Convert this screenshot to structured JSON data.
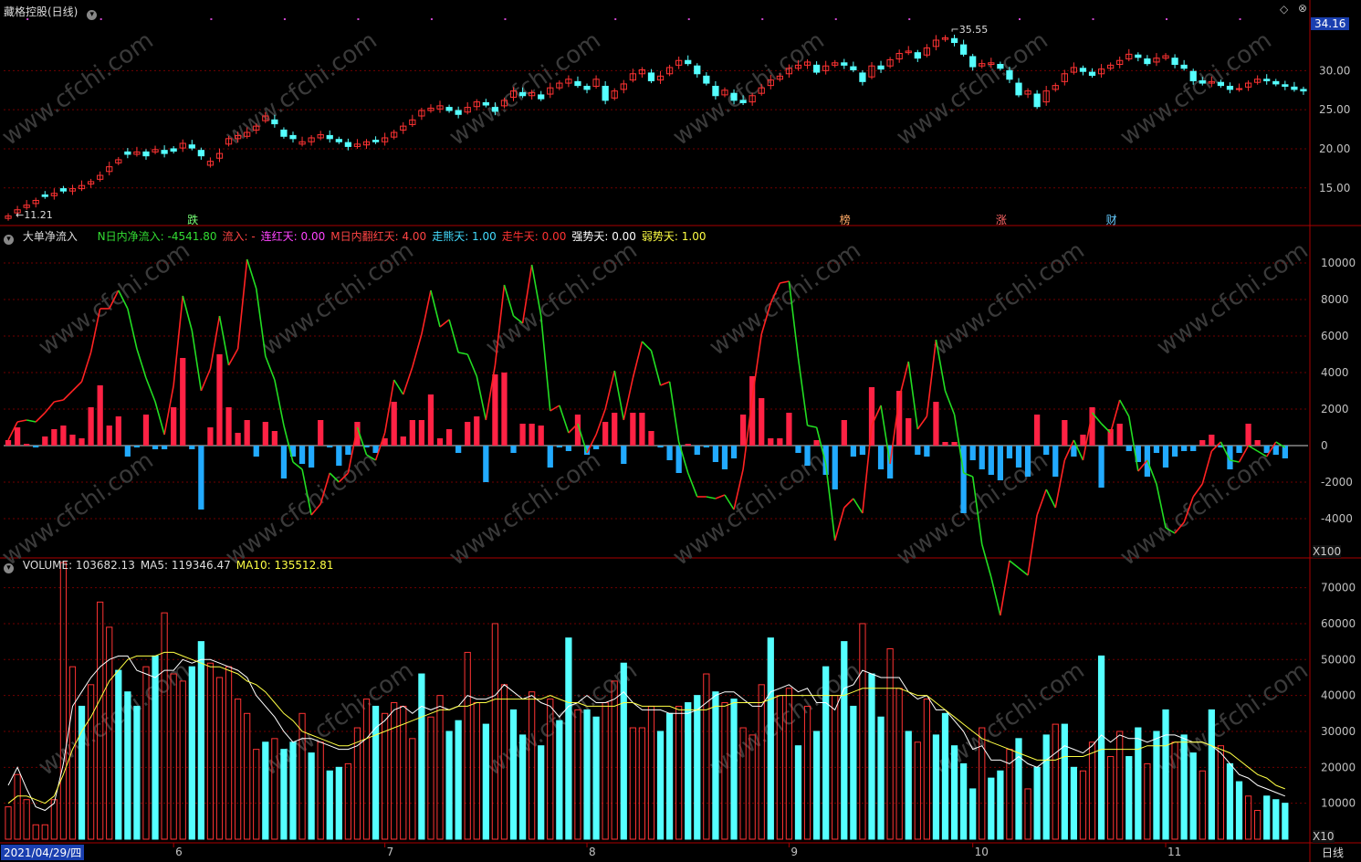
{
  "header": {
    "title": "藏格控股(日线)",
    "indicator_name": "大单净流入",
    "indicator_items": [
      {
        "label": "N日内净流入:",
        "value": "-4541.80",
        "color": "#33dd33"
      },
      {
        "label": "流入:",
        "value": "-",
        "color": "#ff4444"
      },
      {
        "label": "连红天:",
        "value": "0.00",
        "color": "#ff44ff"
      },
      {
        "label": "M日内翻红天:",
        "value": "4.00",
        "color": "#ff4444"
      },
      {
        "label": "走熊天:",
        "value": "1.00",
        "color": "#44ddff"
      },
      {
        "label": "走牛天:",
        "value": "0.00",
        "color": "#ff3333"
      },
      {
        "label": "强势天:",
        "value": "0.00",
        "color": "#ffffff"
      },
      {
        "label": "弱势天:",
        "value": "1.00",
        "color": "#ffff44"
      }
    ],
    "volume_items": [
      {
        "label": "VOLUME:",
        "value": "103682.13",
        "color": "#dddddd"
      },
      {
        "label": "MA5:",
        "value": "119346.47",
        "color": "#dddddd"
      },
      {
        "label": "MA10:",
        "value": "135512.81",
        "color": "#ffff44"
      }
    ],
    "price_tag": "34.16",
    "multiplier_indicator": "X100",
    "multiplier_volume": "X10",
    "period": "日线",
    "date_box": "2021/04/29/四",
    "watermark": "www.cfchi.com"
  },
  "colors": {
    "up": "#ff3333",
    "down": "#55ffff",
    "flow_pos": "#ff2244",
    "flow_neg": "#22aaff",
    "line_up": "#ff2222",
    "line_down": "#22dd22",
    "grid": "#700000",
    "frame": "#aa0000",
    "axis_text": "#c0c0c0"
  },
  "chart_data": [
    {
      "type": "candlestick",
      "name": "price",
      "ylim": [
        11,
        36
      ],
      "y_ticks": [
        "15.00",
        "20.00",
        "25.00",
        "30.00"
      ],
      "high_label": "35.55",
      "low_label": "11.21",
      "markers": [
        "跌",
        "榜",
        "涨",
        "财"
      ],
      "close": [
        11.4,
        12.2,
        12.8,
        13.4,
        13.9,
        14.3,
        14.6,
        14.9,
        15.3,
        15.8,
        16.6,
        17.7,
        18.6,
        19.3,
        19.6,
        19.1,
        19.9,
        19.4,
        19.7,
        20.7,
        20.1,
        19.1,
        18.4,
        19.4,
        21.3,
        21.7,
        22.1,
        22.9,
        24.2,
        23.2,
        21.6,
        21.3,
        20.9,
        21.4,
        21.8,
        21.3,
        20.9,
        20.3,
        20.6,
        20.9,
        20.9,
        21.4,
        22.1,
        22.9,
        23.7,
        24.9,
        25.2,
        25.5,
        24.9,
        24.4,
        25.3,
        26.0,
        25.6,
        24.8,
        26.2,
        27.4,
        26.8,
        27.2,
        26.4,
        27.8,
        28.4,
        28.9,
        28.1,
        27.6,
        28.9,
        26.2,
        27.4,
        28.3,
        29.6,
        30.1,
        28.7,
        29.3,
        30.4,
        31.3,
        30.9,
        29.6,
        28.4,
        26.8,
        27.5,
        26.2,
        25.9,
        26.8,
        27.8,
        28.8,
        29.3,
        30.3,
        30.7,
        31.1,
        29.8,
        30.6,
        31.0,
        30.7,
        30.1,
        28.6,
        30.6,
        30.2,
        31.4,
        32.2,
        32.5,
        31.6,
        32.9,
        33.9,
        34.2,
        33.6,
        32.1,
        30.5,
        30.9,
        31.0,
        30.3,
        28.9,
        26.9,
        27.4,
        25.4,
        27.4,
        28.1,
        29.6,
        30.4,
        29.9,
        29.4,
        30.2,
        30.7,
        31.3,
        32.1,
        31.7,
        30.9,
        31.6,
        31.9,
        30.8,
        30.3,
        28.7,
        28.4,
        28.6,
        28.1,
        27.6,
        27.7,
        28.4,
        28.9,
        28.7,
        28.3,
        28.0,
        27.6,
        27.4
      ],
      "ohlc_open_offset": [
        -0.3,
        -0.4,
        -0.3,
        -0.4,
        0.2,
        -0.3,
        0.3,
        -0.3,
        -0.4,
        -0.3,
        -0.5,
        -0.6,
        -0.4,
        0.3,
        -0.3,
        0.5,
        -0.3,
        0.4,
        0.3,
        -0.6,
        0.4,
        0.7,
        -0.5,
        -0.6,
        -0.7,
        -0.4,
        -0.5,
        -0.5,
        -0.6,
        0.5,
        0.8,
        0.4,
        -0.3,
        -0.5,
        -0.4,
        0.4,
        0.3,
        0.5,
        -0.3,
        -0.4,
        0.2,
        -0.5,
        -0.6,
        -0.5,
        -0.6,
        -0.7,
        -0.3,
        -0.4,
        0.4,
        0.5,
        -0.6,
        -0.6,
        0.3,
        0.5,
        -0.7,
        -0.8,
        0.4,
        -0.4,
        0.5,
        -0.8,
        -0.6,
        -0.5,
        0.5,
        0.4,
        -0.9,
        1.8,
        -0.9,
        -0.7,
        -0.8,
        -0.5,
        1.0,
        -0.5,
        -0.8,
        -0.6,
        0.4,
        1.0,
        0.9,
        1.2,
        -0.6,
        0.9,
        0.3,
        -0.8,
        -0.7,
        -0.7,
        -0.4,
        -0.7,
        -0.4,
        -0.4,
        0.9,
        -0.6,
        -0.3,
        0.3,
        0.4,
        1.1,
        -1.4,
        0.4,
        -0.8,
        -0.7,
        -0.2,
        0.7,
        -0.9,
        -0.8,
        -0.2,
        0.5,
        1.2,
        1.3,
        -0.3,
        -0.2,
        0.5,
        1.1,
        1.5,
        -0.4,
        1.6,
        -1.4,
        -0.5,
        -1.0,
        -0.6,
        0.4,
        0.4,
        -0.6,
        -0.4,
        -0.5,
        -0.6,
        0.3,
        0.6,
        -0.5,
        -0.3,
        0.8,
        0.4,
        1.2,
        0.3,
        -0.2,
        0.4,
        0.4,
        -0.1,
        -0.5,
        -0.4,
        0.2,
        0.3,
        0.2,
        0.3,
        0.2
      ]
    },
    {
      "type": "bar+line",
      "name": "大单净流入",
      "ylim": [
        -6000,
        11000
      ],
      "y_ticks": [
        "10000",
        "8000",
        "6000",
        "4000",
        "2000",
        "0",
        "-2000",
        "-4000"
      ],
      "flow_values": [
        300,
        1000,
        100,
        -100,
        500,
        900,
        1100,
        600,
        400,
        2100,
        3300,
        1100,
        1600,
        -600,
        -100,
        1700,
        -200,
        -200,
        2100,
        4800,
        -200,
        -3500,
        1000,
        5000,
        2100,
        700,
        1400,
        -600,
        1300,
        800,
        -1800,
        -600,
        -1000,
        -1200,
        1400,
        -100,
        -1100,
        -500,
        1300,
        -100,
        -400,
        400,
        2400,
        500,
        1400,
        1400,
        2800,
        400,
        900,
        -400,
        1300,
        1600,
        -2000,
        3900,
        4000,
        -400,
        1200,
        1200,
        1100,
        -1200,
        -100,
        -300,
        1700,
        -500,
        -200,
        1300,
        1800,
        -1000,
        1800,
        1800,
        800,
        -100,
        -800,
        -1500,
        100,
        -500,
        -100,
        -900,
        -1300,
        -700,
        1700,
        3800,
        2600,
        400,
        400,
        1800,
        -400,
        -1100,
        300,
        -1600,
        -2400,
        1400,
        -600,
        -500,
        3200,
        -1300,
        -1800,
        3000,
        1500,
        -500,
        -600,
        2400,
        200,
        200,
        -3700,
        -800,
        -1300,
        -1600,
        -1900,
        -700,
        -1200,
        -1700,
        1700,
        -500,
        -1700,
        1400,
        -600,
        600,
        2100,
        -2300,
        900,
        1200,
        -300,
        -900,
        -1700,
        -400,
        -1200,
        -600,
        -300,
        -300,
        300,
        600,
        -100,
        -1300,
        -400,
        1200,
        300,
        -400,
        -500,
        -700
      ]
    },
    {
      "type": "bar+line",
      "name": "VOLUME",
      "ylim": [
        0,
        76000
      ],
      "y_ticks": [
        "70000",
        "60000",
        "50000",
        "40000",
        "30000",
        "20000",
        "10000"
      ],
      "volume_up_flags": [
        1,
        1,
        1,
        1,
        1,
        1,
        1,
        1,
        0,
        1,
        1,
        1,
        0,
        0,
        0,
        1,
        0,
        1,
        1,
        1,
        0,
        0,
        1,
        1,
        1,
        1,
        1,
        1,
        0,
        1,
        0,
        0,
        1,
        0,
        1,
        0,
        0,
        1,
        1,
        1,
        0,
        1,
        1,
        1,
        1,
        0,
        1,
        1,
        0,
        0,
        1,
        1,
        0,
        1,
        1,
        0,
        0,
        1,
        0,
        1,
        0,
        0,
        1,
        0,
        0,
        1,
        1,
        0,
        1,
        1,
        1,
        0,
        0,
        1,
        0,
        0,
        1,
        0,
        1,
        0,
        1,
        1,
        1,
        0,
        1,
        1,
        0,
        1,
        0,
        0,
        1,
        0,
        0,
        1,
        0,
        0,
        1,
        1,
        0,
        1,
        1,
        0,
        0,
        0,
        0,
        0,
        1,
        0,
        0,
        1,
        0,
        1,
        0,
        0,
        1,
        0,
        0,
        1,
        1,
        0,
        1,
        1,
        0,
        0,
        1,
        0,
        0,
        1,
        0,
        0,
        1,
        0,
        1,
        0,
        0,
        1,
        1,
        0,
        0,
        0
      ],
      "volume_values": [
        9000,
        18000,
        11000,
        4000,
        4000,
        11000,
        77000,
        48000,
        37000,
        43000,
        66000,
        59000,
        47000,
        41000,
        37000,
        48000,
        51000,
        63000,
        46000,
        44000,
        48000,
        55000,
        49000,
        45000,
        48000,
        39000,
        35000,
        25000,
        27000,
        28000,
        25000,
        27000,
        35000,
        24000,
        27000,
        19000,
        20000,
        21000,
        31000,
        39000,
        37000,
        35000,
        38000,
        37000,
        28000,
        46000,
        34000,
        40000,
        30000,
        33000,
        52000,
        38000,
        32000,
        60000,
        43000,
        36000,
        29000,
        41000,
        26000,
        39000,
        33000,
        56000,
        36000,
        36000,
        34000,
        38000,
        44000,
        49000,
        31000,
        31000,
        37000,
        30000,
        35000,
        37000,
        38000,
        40000,
        46000,
        41000,
        38000,
        39000,
        31000,
        29000,
        43000,
        56000,
        40000,
        42000,
        26000,
        37000,
        30000,
        48000,
        40000,
        55000,
        37000,
        60000,
        46000,
        34000,
        53000,
        42000,
        30000,
        27000,
        39000,
        29000,
        35000,
        26000,
        21000,
        14000,
        31000,
        17000,
        19000,
        25000,
        28000,
        14000,
        20000,
        29000,
        32000,
        32000,
        20000,
        19000,
        27000,
        51000,
        23000,
        30000,
        23000,
        31000,
        21000,
        30000,
        36000,
        27000,
        29000,
        24000,
        19000,
        36000,
        26000,
        21000,
        16000,
        12000,
        8000,
        12000,
        11000,
        10000
      ],
      "ma5": [
        15000,
        20000,
        14000,
        9000,
        8000,
        10000,
        21000,
        37000,
        41000,
        45000,
        48000,
        50000,
        51000,
        51000,
        47000,
        46000,
        45000,
        47000,
        47000,
        50000,
        49000,
        50000,
        50000,
        49000,
        48000,
        47000,
        45000,
        40000,
        37000,
        34000,
        30000,
        27000,
        28000,
        28000,
        27000,
        26000,
        25000,
        25000,
        26000,
        28000,
        31000,
        33000,
        36000,
        37000,
        35000,
        37000,
        36000,
        37000,
        36000,
        37000,
        40000,
        39000,
        39000,
        40000,
        43000,
        41000,
        39000,
        40000,
        38000,
        37000,
        34000,
        37000,
        38000,
        40000,
        38000,
        38000,
        39000,
        41000,
        38000,
        36000,
        36000,
        36000,
        35000,
        35000,
        35000,
        36000,
        38000,
        40000,
        41000,
        41000,
        39000,
        37000,
        37000,
        41000,
        42000,
        43000,
        41000,
        42000,
        38000,
        38000,
        36000,
        42000,
        43000,
        47000,
        46000,
        45000,
        45000,
        45000,
        41000,
        39000,
        40000,
        36000,
        36000,
        33000,
        30000,
        25000,
        26000,
        22000,
        22000,
        21000,
        23000,
        21000,
        20000,
        22000,
        24000,
        26000,
        25000,
        24000,
        26000,
        29000,
        27000,
        29000,
        28000,
        28000,
        27000,
        28000,
        29000,
        29000,
        28000,
        27000,
        27000,
        26000,
        24000,
        21000,
        18000,
        17000,
        15000,
        14000,
        13000,
        12000
      ],
      "ma10": [
        10000,
        12000,
        12000,
        11000,
        10000,
        12000,
        18000,
        25000,
        30000,
        34000,
        39000,
        44000,
        47000,
        50000,
        51000,
        51000,
        51000,
        52000,
        52000,
        51000,
        50000,
        49000,
        48000,
        48000,
        47000,
        46000,
        44000,
        43000,
        41000,
        38000,
        35000,
        33000,
        30000,
        29000,
        28000,
        27000,
        26000,
        26000,
        27000,
        28000,
        29000,
        30000,
        31000,
        32000,
        33000,
        34000,
        35000,
        36000,
        36000,
        37000,
        37000,
        38000,
        38000,
        39000,
        39000,
        39000,
        39000,
        39000,
        39000,
        40000,
        39000,
        38000,
        38000,
        37000,
        37000,
        37000,
        37000,
        38000,
        38000,
        37000,
        37000,
        37000,
        37000,
        36000,
        36000,
        36000,
        36000,
        37000,
        37000,
        38000,
        38000,
        38000,
        38000,
        39000,
        40000,
        40000,
        40000,
        40000,
        40000,
        40000,
        40000,
        40000,
        41000,
        42000,
        42000,
        42000,
        42000,
        42000,
        41000,
        40000,
        40000,
        38000,
        36000,
        34000,
        32000,
        30000,
        28000,
        27000,
        26000,
        25000,
        24000,
        23000,
        22000,
        22000,
        22000,
        23000,
        23000,
        23000,
        24000,
        25000,
        25000,
        25000,
        25000,
        25000,
        26000,
        26000,
        26000,
        27000,
        27000,
        27000,
        27000,
        26000,
        25000,
        24000,
        22000,
        20000,
        18000,
        17000,
        15000,
        14000
      ]
    }
  ],
  "x_axis": {
    "month_labels": [
      "6",
      "7",
      "8",
      "9",
      "10",
      "11"
    ],
    "month_start_index": [
      18,
      41,
      63,
      85,
      105,
      126
    ]
  }
}
